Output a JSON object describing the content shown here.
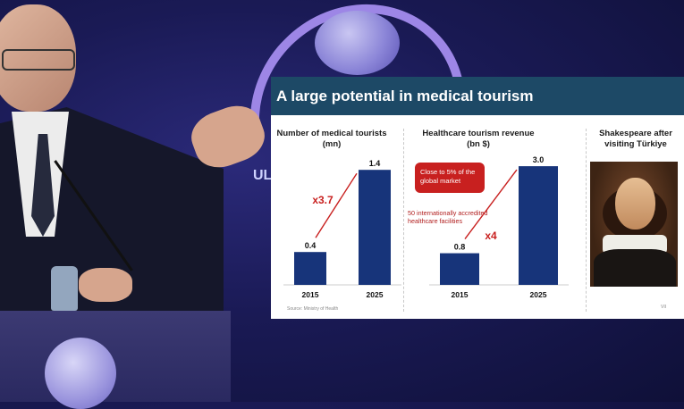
{
  "slide": {
    "title": "A large potential in medical tourism",
    "source": "Source: Ministry of Health",
    "page_number": "VII"
  },
  "backdrop": {
    "partial_text": "UL"
  },
  "colors": {
    "bar": "#17347a",
    "title_bar": "#1d4966",
    "accent_red": "#c8201f"
  },
  "chart_data": [
    {
      "type": "bar",
      "title": "Number of medical tourists (mn)",
      "categories": [
        "2015",
        "2025"
      ],
      "values": [
        0.4,
        1.4
      ],
      "value_labels": [
        "0.4",
        "1.4"
      ],
      "annotation": "x3.7"
    },
    {
      "type": "bar",
      "title": "Healthcare tourism revenue (bn $)",
      "categories": [
        "2015",
        "2025"
      ],
      "values": [
        0.8,
        3.0
      ],
      "value_labels": [
        "0.8",
        "3.0"
      ],
      "annotation": "x4",
      "callout": "Close to 5% of the global market",
      "note": "50 internationally accredited healthcare facilities"
    }
  ],
  "panel3": {
    "title": "Shakespeare after visiting Türkiye"
  }
}
